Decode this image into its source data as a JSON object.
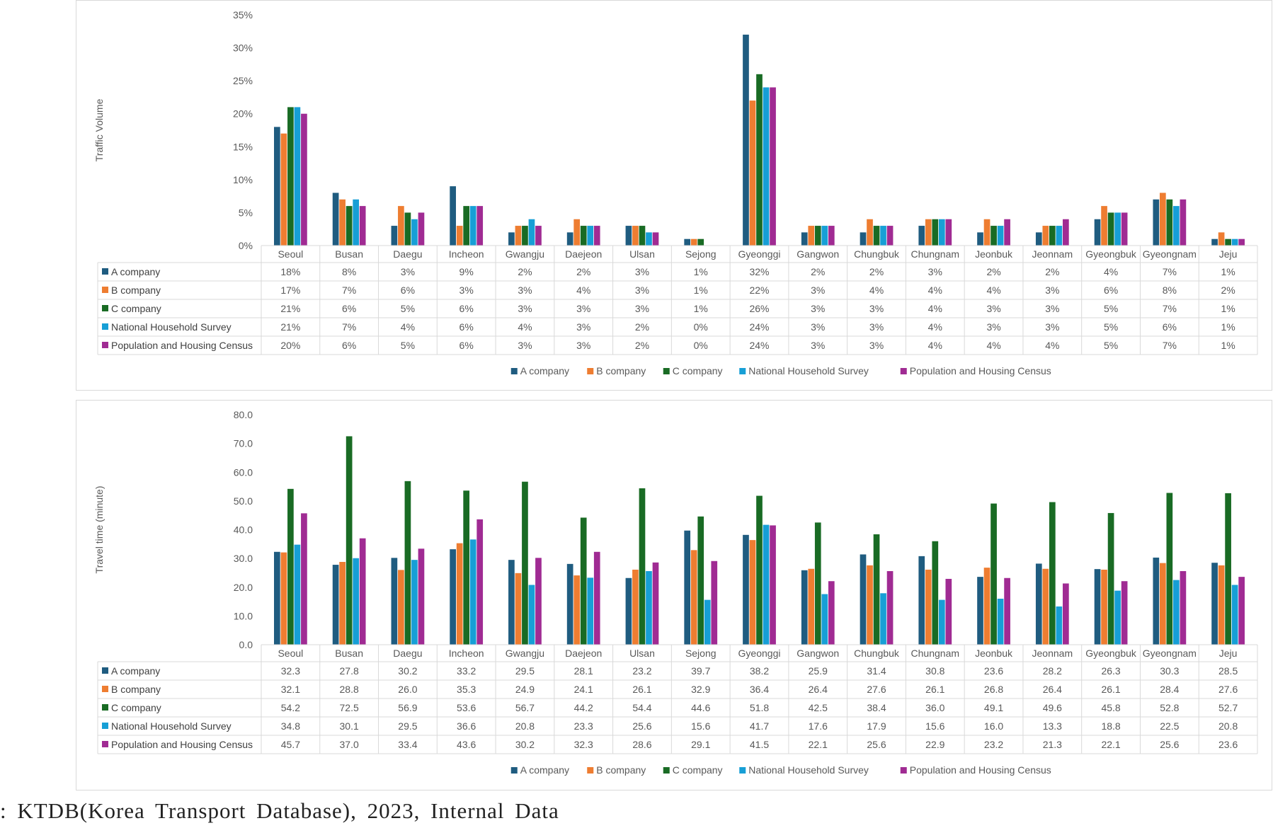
{
  "source_note": ": KTDB(Korea Transport Database), 2023, Internal Data",
  "colors": {
    "A company": "#1f5c80",
    "B company": "#ee7d31",
    "C company": "#196b24",
    "National Household Survey": "#179fd6",
    "Population and Housing Census": "#a02b93"
  },
  "chart_data": [
    {
      "type": "bar",
      "title": "",
      "ylabel": "Traffic Volume",
      "xlabel": "",
      "ylim": [
        0,
        35
      ],
      "yticks": [
        "0%",
        "5%",
        "10%",
        "15%",
        "20%",
        "25%",
        "30%",
        "35%"
      ],
      "legend": "bottom",
      "data_table": true,
      "categories": [
        "Seoul",
        "Busan",
        "Daegu",
        "Incheon",
        "Gwangju",
        "Daejeon",
        "Ulsan",
        "Sejong",
        "Gyeonggi",
        "Gangwon",
        "Chungbuk",
        "Chungnam",
        "Jeonbuk",
        "Jeonnam",
        "Gyeongbuk",
        "Gyeongnam",
        "Jeju"
      ],
      "series": [
        {
          "name": "A company",
          "values": [
            18,
            8,
            3,
            9,
            2,
            2,
            3,
            1,
            32,
            2,
            2,
            3,
            2,
            2,
            4,
            7,
            1
          ],
          "labels": [
            "18%",
            "8%",
            "3%",
            "9%",
            "2%",
            "2%",
            "3%",
            "1%",
            "32%",
            "2%",
            "2%",
            "3%",
            "2%",
            "2%",
            "4%",
            "7%",
            "1%"
          ]
        },
        {
          "name": "B company",
          "values": [
            17,
            7,
            6,
            3,
            3,
            4,
            3,
            1,
            22,
            3,
            4,
            4,
            4,
            3,
            6,
            8,
            2
          ],
          "labels": [
            "17%",
            "7%",
            "6%",
            "3%",
            "3%",
            "4%",
            "3%",
            "1%",
            "22%",
            "3%",
            "4%",
            "4%",
            "4%",
            "3%",
            "6%",
            "8%",
            "2%"
          ]
        },
        {
          "name": "C company",
          "values": [
            21,
            6,
            5,
            6,
            3,
            3,
            3,
            1,
            26,
            3,
            3,
            4,
            3,
            3,
            5,
            7,
            1
          ],
          "labels": [
            "21%",
            "6%",
            "5%",
            "6%",
            "3%",
            "3%",
            "3%",
            "1%",
            "26%",
            "3%",
            "3%",
            "4%",
            "3%",
            "3%",
            "5%",
            "7%",
            "1%"
          ]
        },
        {
          "name": "National Household Survey",
          "values": [
            21,
            7,
            4,
            6,
            4,
            3,
            2,
            0,
            24,
            3,
            3,
            4,
            3,
            3,
            5,
            6,
            1
          ],
          "labels": [
            "21%",
            "7%",
            "4%",
            "6%",
            "4%",
            "3%",
            "2%",
            "0%",
            "24%",
            "3%",
            "3%",
            "4%",
            "3%",
            "3%",
            "5%",
            "6%",
            "1%"
          ]
        },
        {
          "name": "Population and Housing Census",
          "values": [
            20,
            6,
            5,
            6,
            3,
            3,
            2,
            0,
            24,
            3,
            3,
            4,
            4,
            4,
            5,
            7,
            1
          ],
          "labels": [
            "20%",
            "6%",
            "5%",
            "6%",
            "3%",
            "3%",
            "2%",
            "0%",
            "24%",
            "3%",
            "3%",
            "4%",
            "4%",
            "4%",
            "5%",
            "7%",
            "1%"
          ]
        }
      ]
    },
    {
      "type": "bar",
      "title": "",
      "ylabel": "Travel time (minute)",
      "xlabel": "",
      "ylim": [
        0,
        80
      ],
      "yticks": [
        "0.0",
        "10.0",
        "20.0",
        "30.0",
        "40.0",
        "50.0",
        "60.0",
        "70.0",
        "80.0"
      ],
      "legend": "bottom",
      "data_table": true,
      "categories": [
        "Seoul",
        "Busan",
        "Daegu",
        "Incheon",
        "Gwangju",
        "Daejeon",
        "Ulsan",
        "Sejong",
        "Gyeonggi",
        "Gangwon",
        "Chungbuk",
        "Chungnam",
        "Jeonbuk",
        "Jeonnam",
        "Gyeongbuk",
        "Gyeongnam",
        "Jeju"
      ],
      "series": [
        {
          "name": "A company",
          "values": [
            32.3,
            27.8,
            30.2,
            33.2,
            29.5,
            28.1,
            23.2,
            39.7,
            38.2,
            25.9,
            31.4,
            30.8,
            23.6,
            28.2,
            26.3,
            30.3,
            28.5
          ],
          "labels": [
            "32.3",
            "27.8",
            "30.2",
            "33.2",
            "29.5",
            "28.1",
            "23.2",
            "39.7",
            "38.2",
            "25.9",
            "31.4",
            "30.8",
            "23.6",
            "28.2",
            "26.3",
            "30.3",
            "28.5"
          ]
        },
        {
          "name": "B company",
          "values": [
            32.1,
            28.8,
            26.0,
            35.3,
            24.9,
            24.1,
            26.1,
            32.9,
            36.4,
            26.4,
            27.6,
            26.1,
            26.8,
            26.4,
            26.1,
            28.4,
            27.6
          ],
          "labels": [
            "32.1",
            "28.8",
            "26.0",
            "35.3",
            "24.9",
            "24.1",
            "26.1",
            "32.9",
            "36.4",
            "26.4",
            "27.6",
            "26.1",
            "26.8",
            "26.4",
            "26.1",
            "28.4",
            "27.6"
          ]
        },
        {
          "name": "C company",
          "values": [
            54.2,
            72.5,
            56.9,
            53.6,
            56.7,
            44.2,
            54.4,
            44.6,
            51.8,
            42.5,
            38.4,
            36.0,
            49.1,
            49.6,
            45.8,
            52.8,
            52.7
          ],
          "labels": [
            "54.2",
            "72.5",
            "56.9",
            "53.6",
            "56.7",
            "44.2",
            "54.4",
            "44.6",
            "51.8",
            "42.5",
            "38.4",
            "36.0",
            "49.1",
            "49.6",
            "45.8",
            "52.8",
            "52.7"
          ]
        },
        {
          "name": "National Household Survey",
          "values": [
            34.8,
            30.1,
            29.5,
            36.6,
            20.8,
            23.3,
            25.6,
            15.6,
            41.7,
            17.6,
            17.9,
            15.6,
            16.0,
            13.3,
            18.8,
            22.5,
            20.8
          ],
          "labels": [
            "34.8",
            "30.1",
            "29.5",
            "36.6",
            "20.8",
            "23.3",
            "25.6",
            "15.6",
            "41.7",
            "17.6",
            "17.9",
            "15.6",
            "16.0",
            "13.3",
            "18.8",
            "22.5",
            "20.8"
          ]
        },
        {
          "name": "Population and Housing Census",
          "values": [
            45.7,
            37.0,
            33.4,
            43.6,
            30.2,
            32.3,
            28.6,
            29.1,
            41.5,
            22.1,
            25.6,
            22.9,
            23.2,
            21.3,
            22.1,
            25.6,
            23.6
          ],
          "labels": [
            "45.7",
            "37.0",
            "33.4",
            "43.6",
            "30.2",
            "32.3",
            "28.6",
            "29.1",
            "41.5",
            "22.1",
            "25.6",
            "22.9",
            "23.2",
            "21.3",
            "22.1",
            "25.6",
            "23.6"
          ]
        }
      ]
    }
  ]
}
